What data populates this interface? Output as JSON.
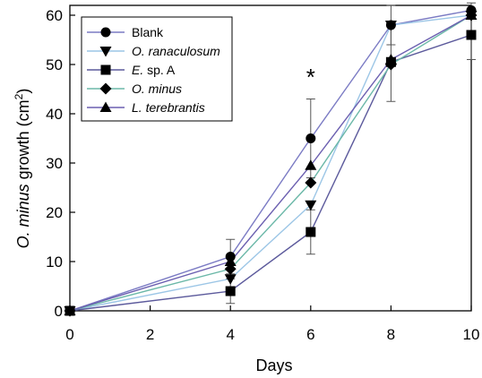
{
  "chart_data": {
    "type": "line",
    "title": "",
    "xlabel": "Days",
    "ylabel": {
      "italic": "O. minus",
      "normal": " growth (cm",
      "sup": "2",
      "close": ")"
    },
    "xlim": [
      0,
      10
    ],
    "ylim": [
      0,
      62
    ],
    "x_ticks": [
      0,
      2,
      4,
      6,
      8,
      10
    ],
    "y_ticks": [
      0,
      10,
      20,
      30,
      40,
      50,
      60
    ],
    "grid": false,
    "legend_position": "top-left",
    "annotations": [
      {
        "text": "*",
        "x": 6,
        "y": 48
      }
    ],
    "series": [
      {
        "name": "Blank",
        "name_italic": false,
        "marker": "circle",
        "line_color": "#7b7bc4",
        "x": [
          0,
          4,
          6,
          8,
          10
        ],
        "y": [
          0,
          11,
          35,
          58,
          61
        ],
        "err": [
          0,
          3.5,
          8,
          4,
          1.5
        ]
      },
      {
        "name": "O. ranaculosum",
        "name_italic": true,
        "marker": "triangle-down",
        "line_color": "#9cc6e6",
        "x": [
          0,
          4,
          6,
          8,
          10
        ],
        "y": [
          0,
          6.5,
          21.5,
          58,
          60
        ],
        "err": [
          0,
          0,
          0,
          0,
          0
        ]
      },
      {
        "name": "E. sp. A",
        "name_italic": false,
        "italic_prefix": "E.",
        "marker": "square",
        "line_color": "#5c5a9c",
        "x": [
          0,
          4,
          6,
          8,
          10
        ],
        "y": [
          0,
          4,
          16,
          50.5,
          56
        ],
        "err": [
          0,
          2.5,
          4.5,
          8,
          5
        ]
      },
      {
        "name": "O. minus",
        "name_italic": true,
        "marker": "diamond",
        "line_color": "#6bb8a8",
        "x": [
          0,
          4,
          6,
          8,
          10
        ],
        "y": [
          0,
          8.5,
          26,
          50,
          60
        ],
        "err": [
          0,
          0,
          0,
          0,
          0
        ]
      },
      {
        "name": "L. terebrantis",
        "name_italic": true,
        "marker": "triangle-up",
        "line_color": "#6b5fb0",
        "x": [
          0,
          4,
          6,
          8,
          10
        ],
        "y": [
          0,
          10,
          29.5,
          51,
          60
        ],
        "err": [
          0,
          0,
          0,
          0,
          0
        ]
      }
    ]
  }
}
